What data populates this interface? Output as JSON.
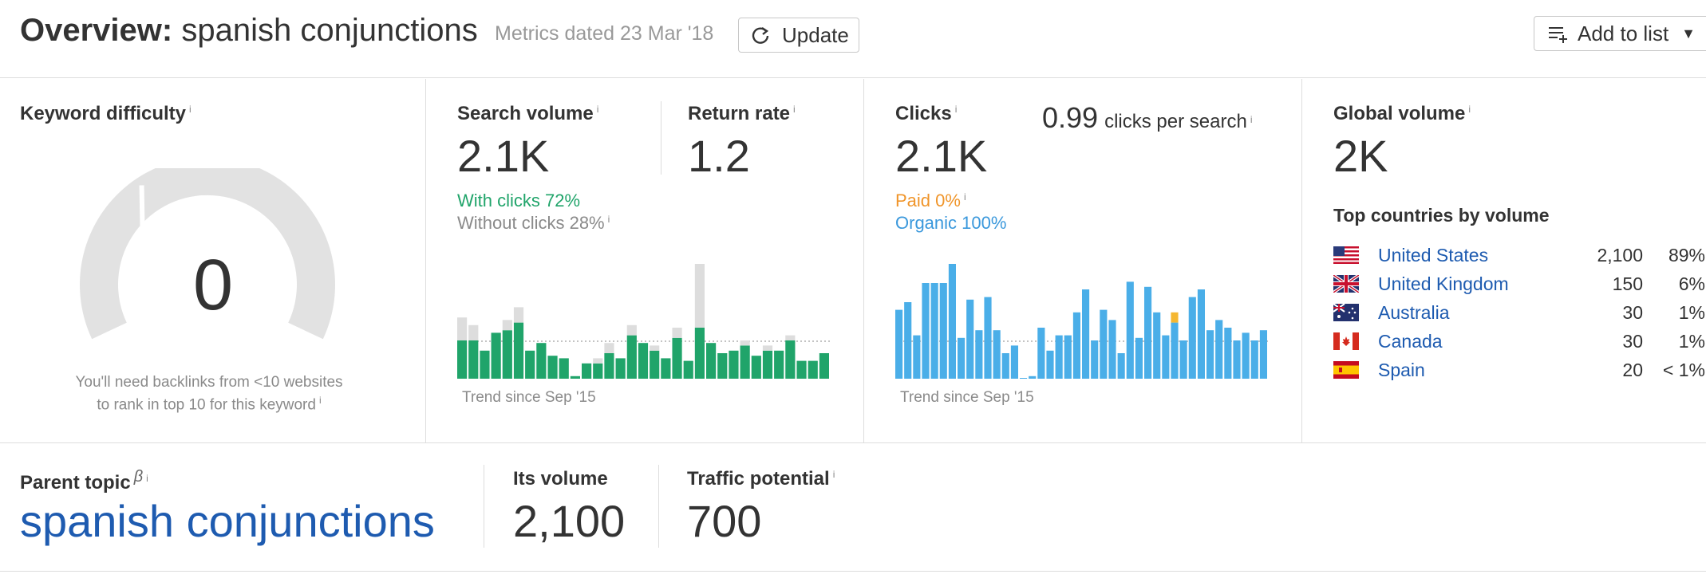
{
  "header": {
    "title_bold": "Overview:",
    "title_keyword": "spanish conjunctions",
    "metrics_date": "Metrics dated 23 Mar '18",
    "update_label": "Update",
    "add_to_list_label": "Add to list"
  },
  "info_glyph": "i",
  "keyword_difficulty": {
    "label": "Keyword difficulty",
    "value": "0",
    "note_line1": "You'll need backlinks from <10 websites",
    "note_line2": "to rank in top 10 for this keyword"
  },
  "search_volume": {
    "label": "Search volume",
    "value": "2.1K",
    "with_clicks": "With clicks 72%",
    "without_clicks": "Without clicks 28%",
    "trend_label": "Trend since Sep '15",
    "return_rate_label": "Return rate",
    "return_rate_value": "1.2"
  },
  "clicks": {
    "label": "Clicks",
    "value": "2.1K",
    "per_search_value": "0.99",
    "per_search_label": "clicks per search",
    "paid": "Paid 0%",
    "organic": "Organic 100%",
    "trend_label": "Trend since Sep '15"
  },
  "global_volume": {
    "label": "Global volume",
    "value": "2K",
    "countries_title": "Top countries by volume",
    "countries": [
      {
        "name": "United States",
        "volume": "2,100",
        "percent": "89%",
        "flag": "us-flag-icon"
      },
      {
        "name": "United Kingdom",
        "volume": "150",
        "percent": "6%",
        "flag": "uk-flag-icon"
      },
      {
        "name": "Australia",
        "volume": "30",
        "percent": "1%",
        "flag": "au-flag-icon"
      },
      {
        "name": "Canada",
        "volume": "30",
        "percent": "1%",
        "flag": "ca-flag-icon"
      },
      {
        "name": "Spain",
        "volume": "20",
        "percent": "< 1%",
        "flag": "es-flag-icon"
      }
    ]
  },
  "parent_topic": {
    "label": "Parent topic",
    "beta": "β",
    "value": "spanish conjunctions",
    "its_volume_label": "Its volume",
    "its_volume_value": "2,100",
    "traffic_potential_label": "Traffic potential",
    "traffic_potential_value": "700"
  },
  "colors": {
    "green": "#20a46a",
    "light_gray": "#dddddd",
    "blue": "#4aaee8",
    "orange": "#f5b731",
    "link_blue": "#1e5bb0"
  },
  "sv_trend": {
    "with_clicks": [
      30,
      30,
      22,
      36,
      38,
      44,
      22,
      28,
      18,
      16,
      2,
      12,
      12,
      20,
      16,
      34,
      28,
      22,
      16,
      32,
      14,
      40,
      28,
      20,
      22,
      26,
      18,
      22,
      22,
      30,
      14,
      14,
      20
    ],
    "without_clicks": [
      18,
      12,
      0,
      0,
      8,
      12,
      0,
      0,
      0,
      0,
      0,
      0,
      4,
      8,
      0,
      8,
      0,
      4,
      0,
      8,
      0,
      50,
      0,
      0,
      0,
      4,
      0,
      4,
      0,
      4,
      0,
      0,
      0
    ]
  },
  "clicks_trend": {
    "organic": [
      54,
      60,
      34,
      75,
      75,
      75,
      90,
      32,
      62,
      38,
      64,
      38,
      20,
      26,
      0,
      2,
      40,
      22,
      34,
      34,
      52,
      70,
      30,
      54,
      46,
      20,
      76,
      32,
      72,
      52,
      34,
      44,
      30,
      64,
      70,
      38,
      46,
      40,
      30,
      36,
      30,
      38
    ],
    "paid": [
      0,
      0,
      0,
      0,
      0,
      0,
      0,
      0,
      0,
      0,
      0,
      0,
      0,
      0,
      0,
      0,
      0,
      0,
      0,
      0,
      0,
      0,
      0,
      0,
      0,
      0,
      0,
      0,
      0,
      0,
      0,
      8,
      0,
      0,
      0,
      0,
      0,
      0,
      0,
      0,
      0,
      0
    ]
  }
}
